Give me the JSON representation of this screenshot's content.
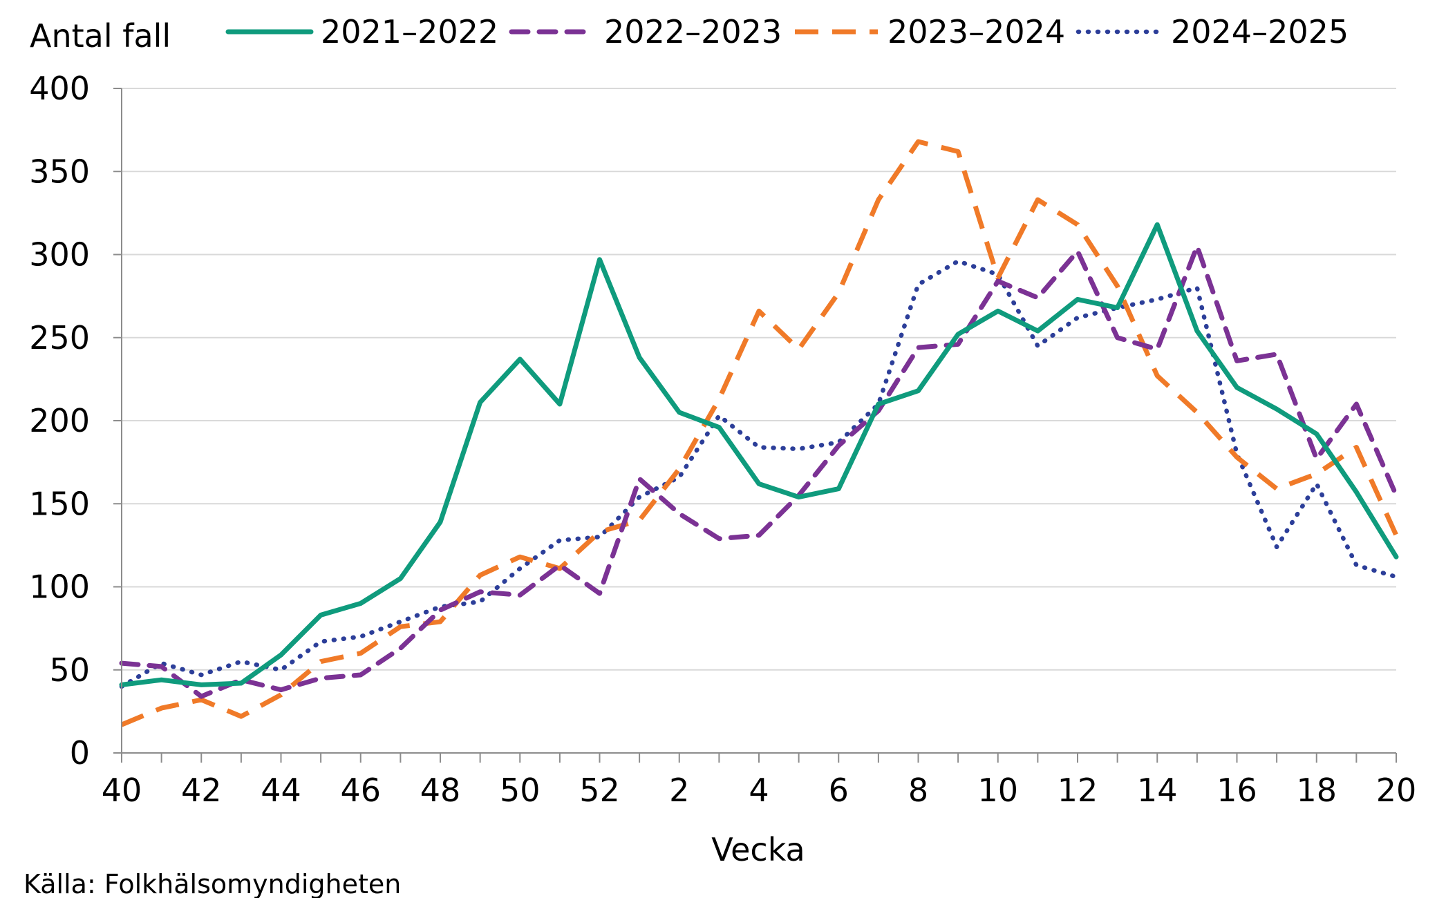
{
  "chart_data": {
    "type": "line",
    "ylabel": "Antal fall",
    "xlabel": "Vecka",
    "source": "Källa: Folkhälsomyndigheten",
    "ylim": [
      0,
      400
    ],
    "yticks": [
      0,
      50,
      100,
      150,
      200,
      250,
      300,
      350,
      400
    ],
    "grid": true,
    "legend_position": "top",
    "categories": [
      "40",
      "41",
      "42",
      "43",
      "44",
      "45",
      "46",
      "47",
      "48",
      "49",
      "50",
      "51",
      "52",
      "1",
      "2",
      "3",
      "4",
      "5",
      "6",
      "7",
      "8",
      "9",
      "10",
      "11",
      "12",
      "13",
      "14",
      "15",
      "16",
      "17",
      "18",
      "19",
      "20"
    ],
    "xtick_labels": [
      "40",
      "",
      "42",
      "",
      "44",
      "",
      "46",
      "",
      "48",
      "",
      "50",
      "",
      "52",
      "",
      "2",
      "",
      "4",
      "",
      "6",
      "",
      "8",
      "",
      "10",
      "",
      "12",
      "",
      "14",
      "",
      "16",
      "",
      "18",
      "",
      "20"
    ],
    "series": [
      {
        "name": "2021–2022",
        "color": "#0f9b7d",
        "style": "solid",
        "values": [
          41,
          44,
          41,
          42,
          59,
          83,
          90,
          105,
          139,
          211,
          237,
          210,
          297,
          238,
          205,
          196,
          162,
          154,
          159,
          210,
          218,
          252,
          266,
          254,
          273,
          268,
          318,
          254,
          220,
          207,
          192,
          157,
          118
        ]
      },
      {
        "name": "2022–2023",
        "color": "#7b3294",
        "style": "dashed",
        "values": [
          54,
          52,
          34,
          44,
          38,
          45,
          47,
          63,
          86,
          97,
          95,
          113,
          96,
          165,
          144,
          129,
          131,
          155,
          185,
          206,
          244,
          246,
          284,
          274,
          302,
          250,
          243,
          305,
          236,
          240,
          177,
          210,
          155
        ]
      },
      {
        "name": "2023–2024",
        "color": "#f07a28",
        "style": "longdash",
        "values": [
          17,
          27,
          32,
          22,
          35,
          55,
          60,
          76,
          79,
          107,
          118,
          111,
          133,
          140,
          171,
          213,
          266,
          243,
          277,
          333,
          368,
          362,
          286,
          333,
          318,
          281,
          227,
          205,
          178,
          159,
          168,
          184,
          131
        ]
      },
      {
        "name": "2024–2025",
        "color": "#2c3e99",
        "style": "dotted",
        "values": [
          40,
          54,
          47,
          55,
          50,
          67,
          70,
          79,
          88,
          91,
          111,
          128,
          130,
          154,
          166,
          203,
          184,
          183,
          187,
          210,
          282,
          296,
          288,
          245,
          262,
          268,
          273,
          280,
          180,
          124,
          162,
          113,
          106
        ]
      }
    ]
  }
}
